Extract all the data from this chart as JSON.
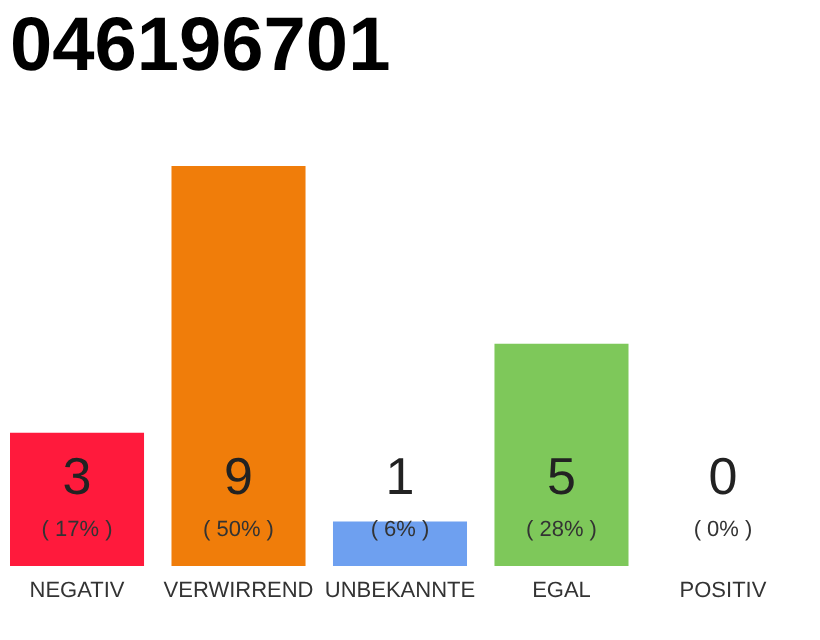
{
  "chart_data": {
    "type": "bar",
    "title": "046196701",
    "categories": [
      "NEGATIV",
      "VERWIRREND",
      "UNBEKANNTE",
      "EGAL",
      "POSITIV"
    ],
    "values": [
      3,
      9,
      1,
      5,
      0
    ],
    "colors": [
      "#ff1a3c",
      "#f07d0a",
      "#6ea0f0",
      "#7ec85a",
      "#cccccc"
    ],
    "data_labels": true,
    "annotations": [
      "( 17% )",
      "( 50% )",
      "( 6% )",
      "( 28% )",
      "( 0% )"
    ],
    "grid": false,
    "tick_labels": "x"
  }
}
